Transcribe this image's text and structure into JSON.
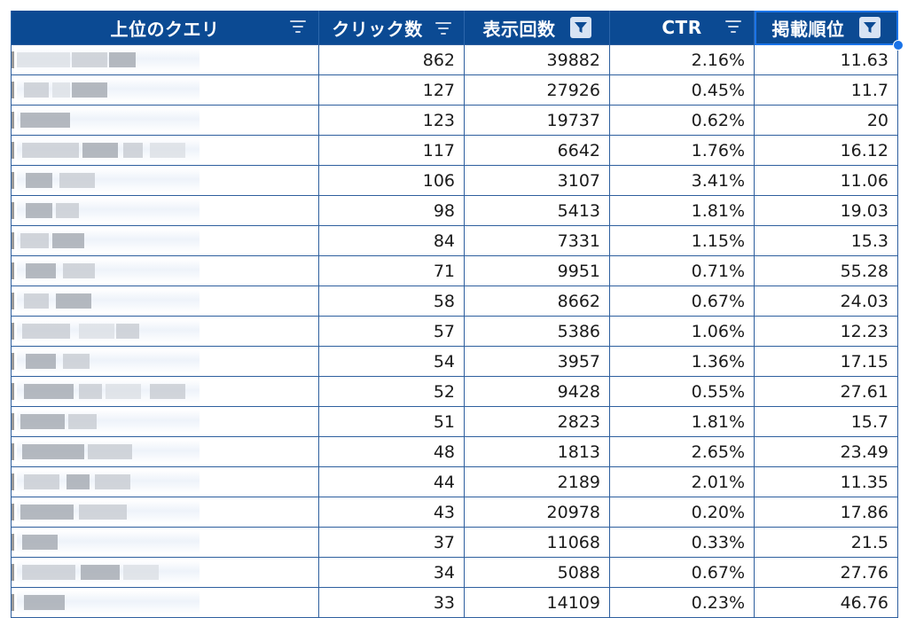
{
  "table": {
    "columns": [
      {
        "label": "上位のクエリ",
        "icon": "sort-lines-icon"
      },
      {
        "label": "クリック数",
        "icon": "sort-lines-icon"
      },
      {
        "label": "表示回数",
        "icon": "filter-funnel-icon"
      },
      {
        "label": "CTR",
        "icon": "sort-lines-icon"
      },
      {
        "label": "掲載順位",
        "icon": "filter-funnel-icon"
      }
    ],
    "colors": {
      "header_bg": "#0b4a93",
      "header_text": "#ffffff",
      "grid": "#2e5f9e",
      "selection": "#1a73e8"
    },
    "rows": [
      {
        "clicks": "862",
        "impressions": "39882",
        "ctr": "2.16%",
        "position": "11.63"
      },
      {
        "clicks": "127",
        "impressions": "27926",
        "ctr": "0.45%",
        "position": "11.7"
      },
      {
        "clicks": "123",
        "impressions": "19737",
        "ctr": "0.62%",
        "position": "20"
      },
      {
        "clicks": "117",
        "impressions": "6642",
        "ctr": "1.76%",
        "position": "16.12"
      },
      {
        "clicks": "106",
        "impressions": "3107",
        "ctr": "3.41%",
        "position": "11.06"
      },
      {
        "clicks": "98",
        "impressions": "5413",
        "ctr": "1.81%",
        "position": "19.03"
      },
      {
        "clicks": "84",
        "impressions": "7331",
        "ctr": "1.15%",
        "position": "15.3"
      },
      {
        "clicks": "71",
        "impressions": "9951",
        "ctr": "0.71%",
        "position": "55.28"
      },
      {
        "clicks": "58",
        "impressions": "8662",
        "ctr": "0.67%",
        "position": "24.03"
      },
      {
        "clicks": "57",
        "impressions": "5386",
        "ctr": "1.06%",
        "position": "12.23"
      },
      {
        "clicks": "54",
        "impressions": "3957",
        "ctr": "1.36%",
        "position": "17.15"
      },
      {
        "clicks": "52",
        "impressions": "9428",
        "ctr": "0.55%",
        "position": "27.61"
      },
      {
        "clicks": "51",
        "impressions": "2823",
        "ctr": "1.81%",
        "position": "15.7"
      },
      {
        "clicks": "48",
        "impressions": "1813",
        "ctr": "2.65%",
        "position": "23.49"
      },
      {
        "clicks": "44",
        "impressions": "2189",
        "ctr": "2.01%",
        "position": "11.35"
      },
      {
        "clicks": "43",
        "impressions": "20978",
        "ctr": "0.20%",
        "position": "17.86"
      },
      {
        "clicks": "37",
        "impressions": "11068",
        "ctr": "0.33%",
        "position": "21.5"
      },
      {
        "clicks": "34",
        "impressions": "5088",
        "ctr": "0.67%",
        "position": "27.76"
      },
      {
        "clicks": "33",
        "impressions": "14109",
        "ctr": "0.23%",
        "position": "46.76"
      }
    ]
  }
}
